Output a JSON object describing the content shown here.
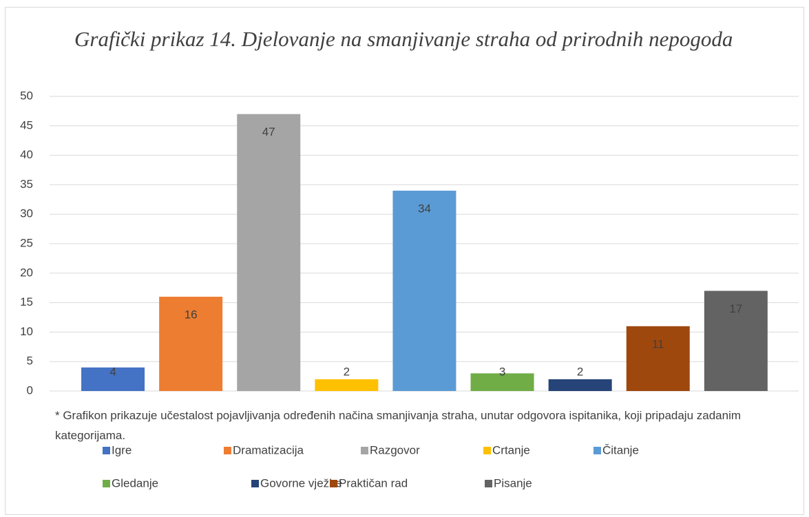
{
  "chart_data": {
    "type": "bar",
    "title": "Grafički prikaz 14. Djelovanje na smanjivanje straha od prirodnih nepogoda",
    "note": "* Grafikon prikazuje učestalost pojavljivanja određenih načina smanjivanja straha, unutar odgovora ispitanika, koji pripadaju zadanim kategorijama.",
    "categories": [
      "Igre",
      "Dramatizacija",
      "Razgovor",
      "Crtanje",
      "Čitanje",
      "Gledanje",
      "Govorne vježbe",
      "Praktičan rad",
      "Pisanje"
    ],
    "values": [
      4,
      16,
      47,
      2,
      34,
      3,
      2,
      11,
      17
    ],
    "colors": [
      "#4472c4",
      "#ed7d31",
      "#a5a5a5",
      "#ffc000",
      "#5b9bd5",
      "#70ad47",
      "#264478",
      "#9e480e",
      "#636363"
    ],
    "ylim": [
      0,
      50
    ],
    "yticks": [
      0,
      5,
      10,
      15,
      20,
      25,
      30,
      35,
      40,
      45,
      50
    ],
    "grid": true,
    "legend": "bottom"
  }
}
